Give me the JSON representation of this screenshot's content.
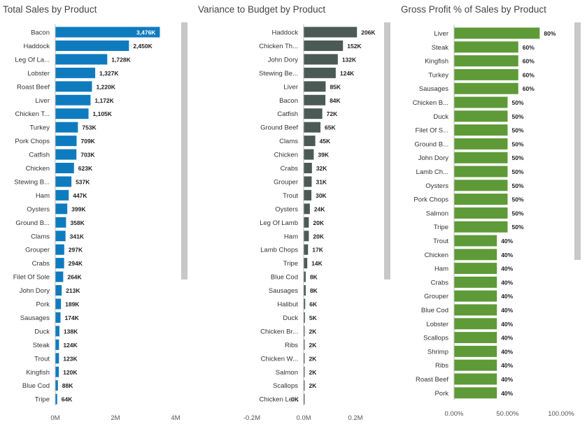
{
  "colors": {
    "sales": "#0f7bbf",
    "variance": "#4b5a55",
    "profit": "#5e9a37",
    "scrollbar": "#c8c8c8"
  },
  "chart_data": [
    {
      "type": "bar",
      "orientation": "horizontal",
      "title": "Total Sales by Product",
      "categories": [
        "Bacon",
        "Haddock",
        "Leg Of La...",
        "Lobster",
        "Roast Beef",
        "Liver",
        "Chicken T...",
        "Turkey",
        "Pork Chops",
        "Catfish",
        "Chicken",
        "Stewing B...",
        "Ham",
        "Oysters",
        "Ground B...",
        "Clams",
        "Grouper",
        "Crabs",
        "Filet Of Sole",
        "John Dory",
        "Pork",
        "Sausages",
        "Duck",
        "Steak",
        "Trout",
        "Kingfish",
        "Blue Cod",
        "Tripe"
      ],
      "values": [
        3476,
        2450,
        1728,
        1327,
        1220,
        1172,
        1105,
        753,
        709,
        703,
        623,
        537,
        447,
        399,
        358,
        341,
        297,
        294,
        264,
        213,
        189,
        174,
        138,
        124,
        123,
        120,
        88,
        64
      ],
      "data_labels": [
        "3,476K",
        "2,450K",
        "1,728K",
        "1,327K",
        "1,220K",
        "1,172K",
        "1,105K",
        "753K",
        "709K",
        "703K",
        "623K",
        "537K",
        "447K",
        "399K",
        "358K",
        "341K",
        "297K",
        "294K",
        "264K",
        "213K",
        "189K",
        "174K",
        "138K",
        "124K",
        "123K",
        "120K",
        "88K",
        "64K"
      ],
      "xlim": [
        0,
        4000
      ],
      "x_ticks": [
        0,
        2000,
        4000
      ],
      "x_tick_labels": [
        "0M",
        "2M",
        "4M"
      ],
      "grid": false,
      "legend": "none"
    },
    {
      "type": "bar",
      "orientation": "horizontal",
      "title": "Variance to Budget by Product",
      "categories": [
        "Haddock",
        "Chicken Th...",
        "John Dory",
        "Stewing Be...",
        "Liver",
        "Bacon",
        "Catfish",
        "Ground Beef",
        "Clams",
        "Chicken",
        "Crabs",
        "Grouper",
        "Trout",
        "Oysters",
        "Leg Of Lamb",
        "Ham",
        "Lamb Chops",
        "Tripe",
        "Blue Cod",
        "Sausages",
        "Halibut",
        "Duck",
        "Chicken Br...",
        "Ribs",
        "Chicken W...",
        "Salmon",
        "Scallops",
        "Chicken Le..."
      ],
      "values": [
        206,
        152,
        132,
        124,
        85,
        84,
        72,
        65,
        45,
        39,
        32,
        31,
        30,
        24,
        20,
        20,
        17,
        14,
        8,
        8,
        6,
        5,
        2,
        2,
        2,
        2,
        2,
        0
      ],
      "data_labels": [
        "206K",
        "152K",
        "132K",
        "124K",
        "85K",
        "84K",
        "72K",
        "65K",
        "45K",
        "39K",
        "32K",
        "31K",
        "30K",
        "24K",
        "20K",
        "20K",
        "17K",
        "14K",
        "8K",
        "8K",
        "6K",
        "5K",
        "2K",
        "2K",
        "2K",
        "2K",
        "2K",
        "0K"
      ],
      "xlim": [
        -200,
        200
      ],
      "x_ticks": [
        -200,
        0,
        200
      ],
      "x_tick_labels": [
        "-0.2M",
        "0.0M",
        "0.2M"
      ],
      "grid": false,
      "legend": "none"
    },
    {
      "type": "bar",
      "orientation": "horizontal",
      "title": "Gross Profit % of Sales by Product",
      "categories": [
        "Liver",
        "Steak",
        "Kingfish",
        "Turkey",
        "Sausages",
        "Chicken B...",
        "Duck",
        "Filet Of S...",
        "Ground B...",
        "John Dory",
        "Lamb Ch...",
        "Oysters",
        "Pork Chops",
        "Salmon",
        "Tripe",
        "Trout",
        "Chicken",
        "Ham",
        "Crabs",
        "Grouper",
        "Blue Cod",
        "Lobster",
        "Scallops",
        "Shrimp",
        "Ribs",
        "Roast Beef",
        "Pork"
      ],
      "values": [
        80,
        60,
        60,
        60,
        60,
        50,
        50,
        50,
        50,
        50,
        50,
        50,
        50,
        50,
        50,
        40,
        40,
        40,
        40,
        40,
        40,
        40,
        40,
        40,
        40,
        40,
        40
      ],
      "data_labels": [
        "80%",
        "60%",
        "60%",
        "60%",
        "60%",
        "50%",
        "50%",
        "50%",
        "50%",
        "50%",
        "50%",
        "50%",
        "50%",
        "50%",
        "50%",
        "40%",
        "40%",
        "40%",
        "40%",
        "40%",
        "40%",
        "40%",
        "40%",
        "40%",
        "40%",
        "40%",
        "40%"
      ],
      "xlim": [
        0,
        100
      ],
      "x_ticks": [
        0,
        50,
        100
      ],
      "x_tick_labels": [
        "0.00%",
        "50.00%",
        "100.00%"
      ],
      "grid": false,
      "legend": "none"
    }
  ]
}
